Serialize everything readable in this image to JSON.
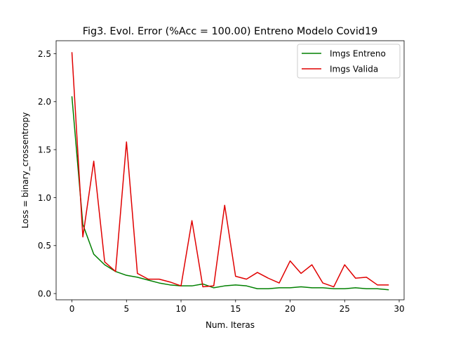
{
  "chart_data": {
    "type": "line",
    "title": "Fig3. Evol. Error (%Acc = 100.00) Entreno Modelo Covid19",
    "xlabel": "Num. Iteras",
    "ylabel": "Loss = binary_crossentropy",
    "xlim": [
      -1.45,
      30.45
    ],
    "ylim": [
      -0.065,
      2.635
    ],
    "xticks": [
      0,
      5,
      10,
      15,
      20,
      25,
      30
    ],
    "xtick_labels": [
      "0",
      "5",
      "10",
      "15",
      "20",
      "25",
      "30"
    ],
    "yticks": [
      0.0,
      0.5,
      1.0,
      1.5,
      2.0,
      2.5
    ],
    "ytick_labels": [
      "0.0",
      "0.5",
      "1.0",
      "1.5",
      "2.0",
      "2.5"
    ],
    "grid": false,
    "legend_position": "top-right",
    "x": [
      0,
      1,
      2,
      3,
      4,
      5,
      6,
      7,
      8,
      9,
      10,
      11,
      12,
      13,
      14,
      15,
      16,
      17,
      18,
      19,
      20,
      21,
      22,
      23,
      24,
      25,
      26,
      27,
      28,
      29
    ],
    "series": [
      {
        "name": "Imgs Entreno",
        "color": "#008000",
        "values": [
          2.05,
          0.72,
          0.41,
          0.3,
          0.23,
          0.19,
          0.17,
          0.14,
          0.11,
          0.09,
          0.08,
          0.08,
          0.1,
          0.06,
          0.08,
          0.09,
          0.08,
          0.05,
          0.05,
          0.06,
          0.06,
          0.07,
          0.06,
          0.06,
          0.05,
          0.05,
          0.06,
          0.05,
          0.05,
          0.04
        ]
      },
      {
        "name": "Imgs Valida",
        "color": "#e00000",
        "values": [
          2.51,
          0.59,
          1.38,
          0.33,
          0.23,
          1.58,
          0.21,
          0.15,
          0.15,
          0.12,
          0.08,
          0.76,
          0.07,
          0.08,
          0.92,
          0.18,
          0.15,
          0.22,
          0.16,
          0.11,
          0.34,
          0.21,
          0.3,
          0.11,
          0.07,
          0.3,
          0.16,
          0.17,
          0.09,
          0.09
        ]
      }
    ]
  }
}
